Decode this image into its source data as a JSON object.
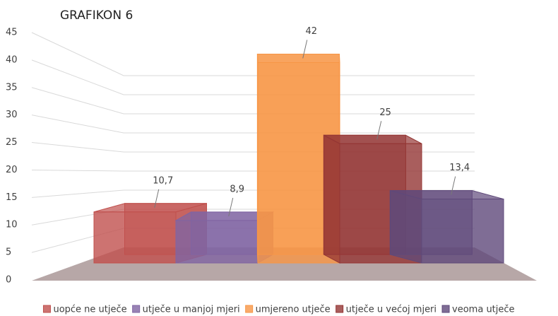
{
  "chart_data": {
    "type": "bar3d",
    "title": "GRAFIKON 6",
    "ylim": [
      0,
      45
    ],
    "yticks": [
      0,
      5,
      10,
      15,
      20,
      25,
      30,
      35,
      40,
      45
    ],
    "grid": true,
    "series": [
      {
        "name": "uopće ne utječe",
        "color": "#c0504d",
        "values": [
          10.7
        ],
        "value_labels": [
          "10,7"
        ]
      },
      {
        "name": "utječe u manjoj mjeri",
        "color": "#8064a2",
        "values": [
          8.9
        ],
        "value_labels": [
          "8,9"
        ]
      },
      {
        "name": "umjereno utječe",
        "color": "#f79646",
        "values": [
          42
        ],
        "value_labels": [
          "42"
        ]
      },
      {
        "name": "utječe u većoj mjeri",
        "color": "#943634",
        "values": [
          25
        ],
        "value_labels": [
          "25"
        ]
      },
      {
        "name": "veoma utječe",
        "color": "#5f497a",
        "values": [
          13.4
        ],
        "value_labels": [
          "13,4"
        ]
      }
    ]
  }
}
